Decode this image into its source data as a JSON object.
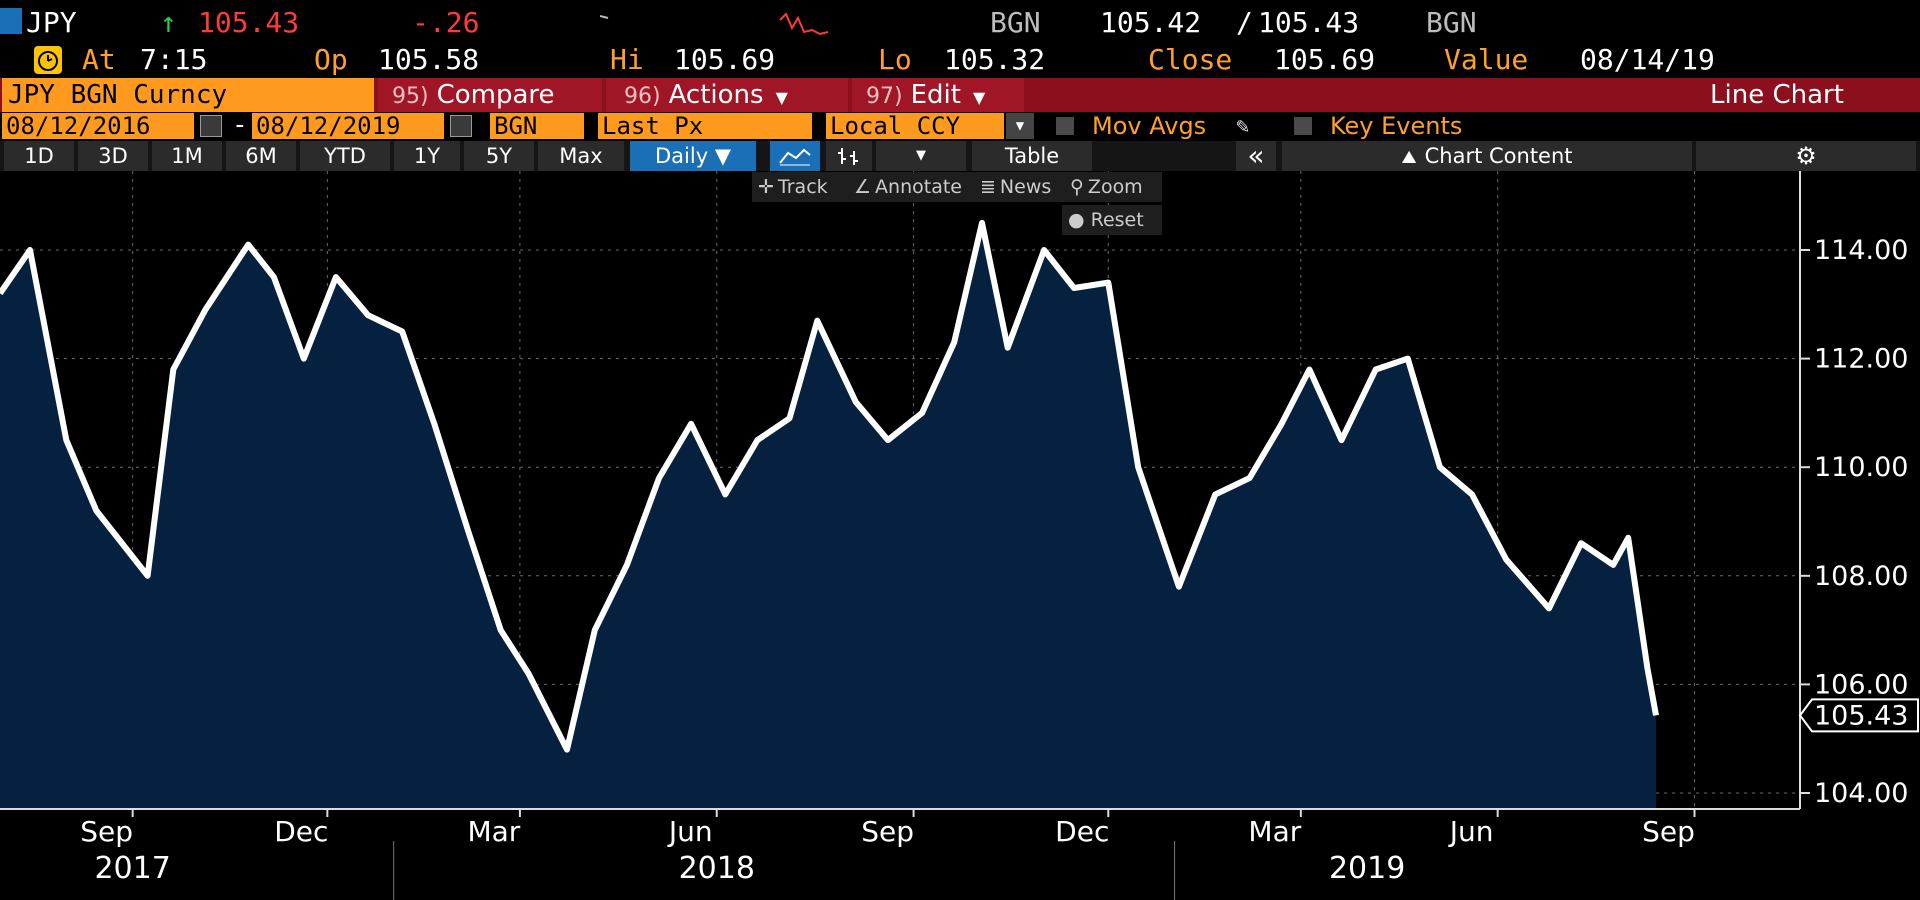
{
  "header": {
    "ticker": "JPY",
    "arrow": "↑",
    "last": "105.43",
    "change": "-.26",
    "source": "BGN",
    "bid": "105.42",
    "slash": "/",
    "ask": "105.43",
    "source2": "BGN",
    "at_label": "At",
    "time": "7:15",
    "op_label": "Op",
    "open": "105.58",
    "hi_label": "Hi",
    "high": "105.69",
    "lo_label": "Lo",
    "low": "105.32",
    "close_label": "Close",
    "close": "105.69",
    "value_label": "Value",
    "value_date": "08/14/19"
  },
  "toolbar": {
    "security": "JPY BGN Curncy",
    "compare_num": "95)",
    "compare": "Compare",
    "actions_num": "96)",
    "actions": "Actions",
    "edit_num": "97)",
    "edit": "Edit",
    "chart_type": "Line Chart"
  },
  "settings": {
    "start_date": "08/12/2016",
    "dash": "-",
    "end_date": "08/12/2019",
    "source": "BGN",
    "field": "Last Px",
    "currency": "Local CCY",
    "mov_avgs": "Mov Avgs",
    "key_events": "Key Events"
  },
  "ranges": [
    "1D",
    "3D",
    "1M",
    "6M",
    "YTD",
    "1Y",
    "5Y",
    "Max"
  ],
  "period": "Daily ▼",
  "table_label": "Table",
  "collapse": "«",
  "chart_content": "Chart Content",
  "tools": {
    "track": "Track",
    "annotate": "Annotate",
    "news": "News",
    "zoom": "Zoom",
    "reset": "Reset"
  },
  "colors": {
    "fill": "#06213f",
    "line": "#ffffff",
    "accent": "#ff9a1e",
    "bar": "#8b0f1d",
    "negative": "#ff3a3a",
    "up_arrow": "#2ecc40"
  },
  "chart_data": {
    "type": "area",
    "x_start": "2017-07-01",
    "x_end": "2019-08-14",
    "x": [
      "2017-07-01",
      "2017-07-15",
      "2017-08-01",
      "2017-08-15",
      "2017-09-08",
      "2017-09-20",
      "2017-10-05",
      "2017-10-25",
      "2017-11-06",
      "2017-11-20",
      "2017-12-05",
      "2017-12-20",
      "2018-01-05",
      "2018-01-20",
      "2018-02-05",
      "2018-02-20",
      "2018-03-05",
      "2018-03-23",
      "2018-04-05",
      "2018-04-20",
      "2018-05-05",
      "2018-05-20",
      "2018-06-05",
      "2018-06-20",
      "2018-07-05",
      "2018-07-18",
      "2018-08-05",
      "2018-08-20",
      "2018-09-05",
      "2018-09-20",
      "2018-10-03",
      "2018-10-15",
      "2018-11-01",
      "2018-11-15",
      "2018-12-01",
      "2018-12-15",
      "2019-01-03",
      "2019-01-20",
      "2019-02-05",
      "2019-02-20",
      "2019-03-05",
      "2019-03-20",
      "2019-04-05",
      "2019-04-20",
      "2019-05-05",
      "2019-05-20",
      "2019-06-05",
      "2019-06-25",
      "2019-07-10",
      "2019-07-25",
      "2019-08-01",
      "2019-08-10",
      "2019-08-14"
    ],
    "values": [
      113.2,
      114.0,
      110.5,
      109.2,
      108.0,
      111.8,
      112.9,
      114.1,
      113.5,
      112.0,
      113.5,
      112.8,
      112.5,
      110.8,
      108.8,
      107.0,
      106.2,
      104.8,
      107.0,
      108.2,
      109.8,
      110.8,
      109.5,
      110.5,
      110.9,
      112.7,
      111.2,
      110.5,
      111.0,
      112.3,
      114.5,
      112.2,
      114.0,
      113.3,
      113.4,
      110.0,
      107.8,
      109.5,
      109.8,
      110.8,
      111.8,
      110.5,
      111.8,
      112.0,
      110.0,
      109.5,
      108.3,
      107.4,
      108.6,
      108.2,
      108.7,
      106.3,
      105.43
    ],
    "ylim": [
      104,
      115
    ],
    "yticks": [
      "104.00",
      "106.00",
      "108.00",
      "110.00",
      "112.00",
      "114.00"
    ],
    "xticks": [
      "Sep",
      "Dec",
      "Mar",
      "Jun",
      "Sep",
      "Dec",
      "Mar",
      "Jun",
      "Sep"
    ],
    "xtick_dates": [
      "2017-09-01",
      "2017-12-01",
      "2018-03-01",
      "2018-06-01",
      "2018-09-01",
      "2018-12-01",
      "2019-03-01",
      "2019-06-01",
      "2019-09-01"
    ],
    "years": [
      "2017",
      "2018",
      "2019"
    ],
    "year_dates": [
      "2017-09-01",
      "2018-06-01",
      "2019-04-01"
    ],
    "year_boundaries": [
      "2018-01-01",
      "2019-01-01"
    ],
    "last_label": "105.43",
    "grid": true
  }
}
